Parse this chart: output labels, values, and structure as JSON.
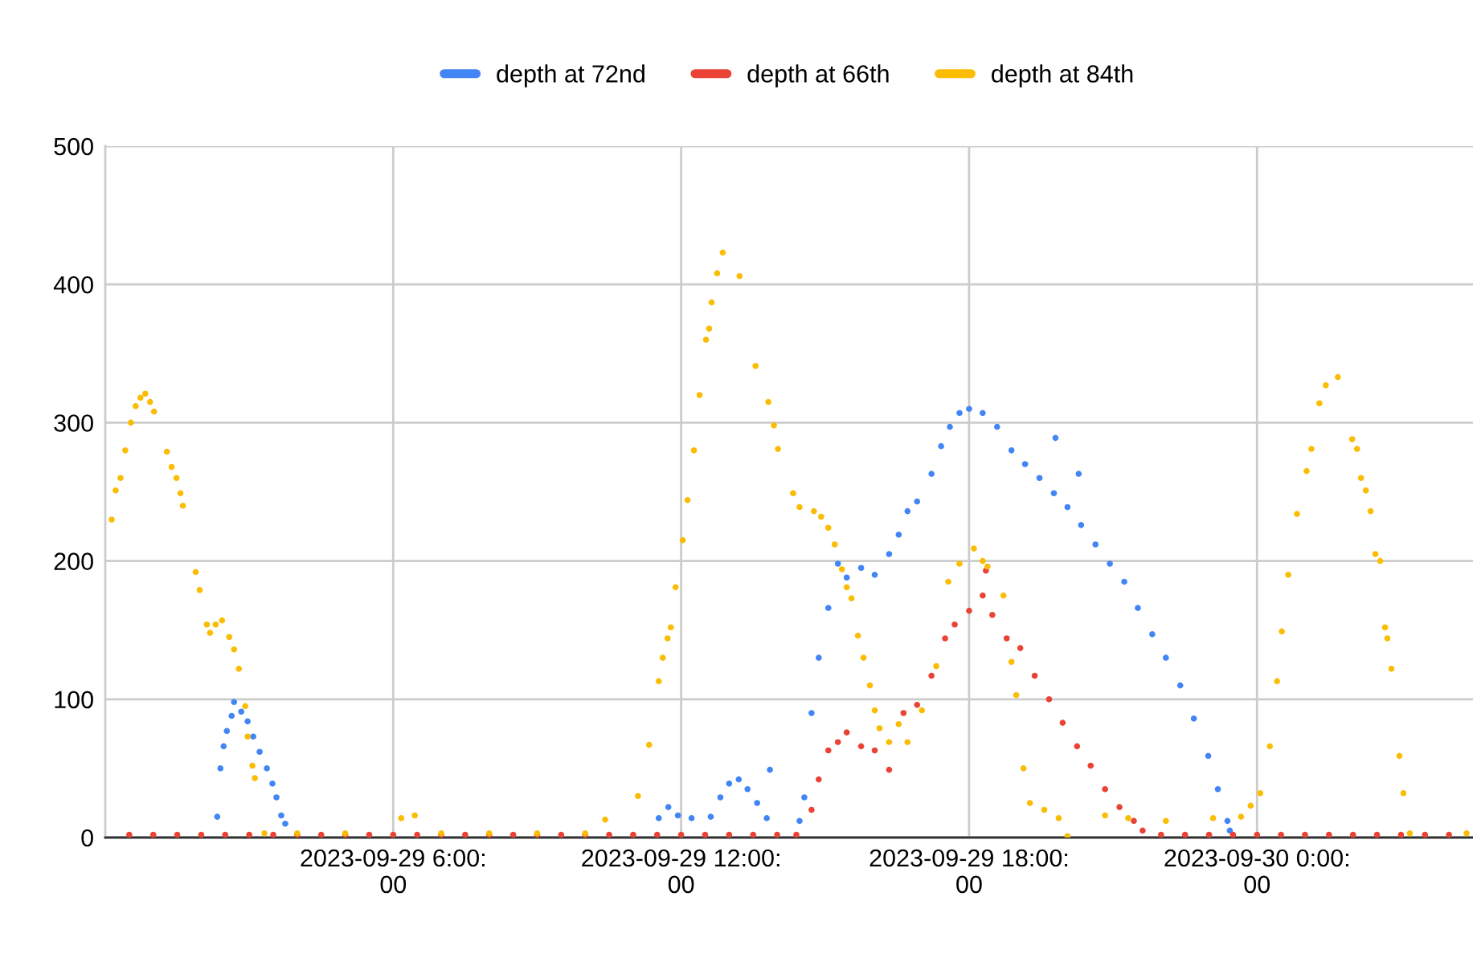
{
  "chart_data": {
    "type": "scatter",
    "marker": "circle",
    "grid": true,
    "legend": "top",
    "xlim": [
      "2023-09-29T00:00",
      "2023-09-30T04:30"
    ],
    "ylim": [
      0,
      500
    ],
    "yticks": [
      0,
      100,
      200,
      300,
      400,
      500
    ],
    "xticks": [
      {
        "value": "2023-09-29T06:00",
        "label": "2023-09-29 6:00:\n00"
      },
      {
        "value": "2023-09-29T12:00",
        "label": "2023-09-29 12:00:\n00"
      },
      {
        "value": "2023-09-29T18:00",
        "label": "2023-09-29 18:00:\n00"
      },
      {
        "value": "2023-09-30T00:00",
        "label": "2023-09-30 0:00:\n00"
      }
    ],
    "series": [
      {
        "name": "depth at 72nd",
        "color": "#4285f4",
        "x": [
          "2023-09-29T02:20",
          "2023-09-29T02:24",
          "2023-09-29T02:28",
          "2023-09-29T02:32",
          "2023-09-29T02:38",
          "2023-09-29T02:41",
          "2023-09-29T02:50",
          "2023-09-29T02:58",
          "2023-09-29T03:05",
          "2023-09-29T03:13",
          "2023-09-29T03:22",
          "2023-09-29T03:29",
          "2023-09-29T03:34",
          "2023-09-29T03:40",
          "2023-09-29T03:45",
          "2023-09-29T11:32",
          "2023-09-29T11:44",
          "2023-09-29T11:56",
          "2023-09-29T12:13",
          "2023-09-29T12:37",
          "2023-09-29T12:49",
          "2023-09-29T13:00",
          "2023-09-29T13:12",
          "2023-09-29T13:23",
          "2023-09-29T13:35",
          "2023-09-29T13:47",
          "2023-09-29T13:51",
          "2023-09-29T14:28",
          "2023-09-29T14:34",
          "2023-09-29T14:43",
          "2023-09-29T14:52",
          "2023-09-29T15:04",
          "2023-09-29T15:16",
          "2023-09-29T15:27",
          "2023-09-29T15:45",
          "2023-09-29T16:02",
          "2023-09-29T16:20",
          "2023-09-29T16:32",
          "2023-09-29T16:43",
          "2023-09-29T16:55",
          "2023-09-29T17:13",
          "2023-09-29T17:25",
          "2023-09-29T17:36",
          "2023-09-29T17:48",
          "2023-09-29T18:00",
          "2023-09-29T18:17",
          "2023-09-29T18:35",
          "2023-09-29T18:53",
          "2023-09-29T19:10",
          "2023-09-29T19:28",
          "2023-09-29T19:46",
          "2023-09-29T19:48",
          "2023-09-29T20:03",
          "2023-09-29T20:17",
          "2023-09-29T20:20",
          "2023-09-29T20:38",
          "2023-09-29T20:56",
          "2023-09-29T21:14",
          "2023-09-29T21:31",
          "2023-09-29T21:49",
          "2023-09-29T22:06",
          "2023-09-29T22:24",
          "2023-09-29T22:41",
          "2023-09-29T22:59",
          "2023-09-29T23:11",
          "2023-09-29T23:23",
          "2023-09-29T23:26"
        ],
        "values": [
          15,
          50,
          66,
          77,
          88,
          98,
          91,
          84,
          73,
          62,
          50,
          39,
          29,
          16,
          10,
          14,
          22,
          16,
          14,
          15,
          29,
          39,
          42,
          35,
          25,
          14,
          49,
          12,
          29,
          90,
          130,
          166,
          198,
          188,
          195,
          190,
          205,
          219,
          236,
          243,
          263,
          283,
          297,
          307,
          310,
          307,
          297,
          280,
          270,
          260,
          249,
          289,
          239,
          263,
          226,
          212,
          198,
          185,
          166,
          147,
          130,
          110,
          86,
          59,
          35,
          12,
          5
        ]
      },
      {
        "name": "depth at 66th",
        "color": "#ea4335",
        "x": [
          "2023-09-29T00:30",
          "2023-09-29T01:00",
          "2023-09-29T01:30",
          "2023-09-29T02:00",
          "2023-09-29T02:30",
          "2023-09-29T03:00",
          "2023-09-29T03:30",
          "2023-09-29T04:00",
          "2023-09-29T04:30",
          "2023-09-29T05:00",
          "2023-09-29T05:30",
          "2023-09-29T06:00",
          "2023-09-29T06:30",
          "2023-09-29T07:00",
          "2023-09-29T07:30",
          "2023-09-29T08:00",
          "2023-09-29T08:30",
          "2023-09-29T09:00",
          "2023-09-29T09:30",
          "2023-09-29T10:00",
          "2023-09-29T10:30",
          "2023-09-29T11:00",
          "2023-09-29T11:30",
          "2023-09-29T12:00",
          "2023-09-29T12:30",
          "2023-09-29T13:00",
          "2023-09-29T13:30",
          "2023-09-29T14:00",
          "2023-09-29T14:24",
          "2023-09-29T14:43",
          "2023-09-29T14:52",
          "2023-09-29T15:04",
          "2023-09-29T15:16",
          "2023-09-29T15:27",
          "2023-09-29T15:45",
          "2023-09-29T16:02",
          "2023-09-29T16:20",
          "2023-09-29T16:38",
          "2023-09-29T16:55",
          "2023-09-29T17:13",
          "2023-09-29T17:30",
          "2023-09-29T17:42",
          "2023-09-29T18:00",
          "2023-09-29T18:17",
          "2023-09-29T18:21",
          "2023-09-29T18:29",
          "2023-09-29T18:47",
          "2023-09-29T19:04",
          "2023-09-29T19:22",
          "2023-09-29T19:40",
          "2023-09-29T19:57",
          "2023-09-29T20:15",
          "2023-09-29T20:32",
          "2023-09-29T20:50",
          "2023-09-29T21:08",
          "2023-09-29T21:26",
          "2023-09-29T21:37",
          "2023-09-29T22:00",
          "2023-09-29T22:30",
          "2023-09-29T23:00",
          "2023-09-29T23:30",
          "2023-09-30T00:00",
          "2023-09-30T00:30",
          "2023-09-30T01:00",
          "2023-09-30T01:30",
          "2023-09-30T02:00",
          "2023-09-30T02:30",
          "2023-09-30T03:00",
          "2023-09-30T03:30",
          "2023-09-30T04:00"
        ],
        "values": [
          2,
          2,
          2,
          2,
          2,
          2,
          2,
          2,
          2,
          2,
          2,
          2,
          2,
          2,
          2,
          2,
          2,
          2,
          2,
          2,
          2,
          2,
          2,
          2,
          2,
          2,
          2,
          2,
          2,
          20,
          42,
          63,
          69,
          76,
          66,
          63,
          49,
          90,
          96,
          117,
          144,
          154,
          164,
          175,
          193,
          161,
          144,
          137,
          117,
          100,
          83,
          66,
          52,
          35,
          22,
          12,
          5,
          2,
          2,
          2,
          2,
          2,
          2,
          2,
          2,
          2,
          2,
          2,
          2,
          2
        ]
      },
      {
        "name": "depth at 84th",
        "color": "#fbbc04",
        "x": [
          "2023-09-29T00:08",
          "2023-09-29T00:13",
          "2023-09-29T00:19",
          "2023-09-29T00:25",
          "2023-09-29T00:32",
          "2023-09-29T00:38",
          "2023-09-29T00:44",
          "2023-09-29T00:50",
          "2023-09-29T00:56",
          "2023-09-29T01:01",
          "2023-09-29T01:17",
          "2023-09-29T01:23",
          "2023-09-29T01:29",
          "2023-09-29T01:34",
          "2023-09-29T01:37",
          "2023-09-29T01:53",
          "2023-09-29T01:58",
          "2023-09-29T02:07",
          "2023-09-29T02:11",
          "2023-09-29T02:18",
          "2023-09-29T02:26",
          "2023-09-29T02:35",
          "2023-09-29T02:41",
          "2023-09-29T02:47",
          "2023-09-29T02:55",
          "2023-09-29T02:58",
          "2023-09-29T03:04",
          "2023-09-29T03:07",
          "2023-09-29T03:19",
          "2023-09-29T04:00",
          "2023-09-29T05:00",
          "2023-09-29T06:10",
          "2023-09-29T06:27",
          "2023-09-29T07:00",
          "2023-09-29T08:00",
          "2023-09-29T09:00",
          "2023-09-29T10:00",
          "2023-09-29T10:25",
          "2023-09-29T11:06",
          "2023-09-29T11:20",
          "2023-09-29T11:32",
          "2023-09-29T11:37",
          "2023-09-29T11:43",
          "2023-09-29T11:47",
          "2023-09-29T11:53",
          "2023-09-29T12:02",
          "2023-09-29T12:08",
          "2023-09-29T12:16",
          "2023-09-29T12:23",
          "2023-09-29T12:31",
          "2023-09-29T12:35",
          "2023-09-29T12:38",
          "2023-09-29T12:45",
          "2023-09-29T12:52",
          "2023-09-29T13:13",
          "2023-09-29T13:33",
          "2023-09-29T13:49",
          "2023-09-29T13:56",
          "2023-09-29T14:01",
          "2023-09-29T14:20",
          "2023-09-29T14:28",
          "2023-09-29T14:46",
          "2023-09-29T14:55",
          "2023-09-29T15:04",
          "2023-09-29T15:12",
          "2023-09-29T15:21",
          "2023-09-29T15:27",
          "2023-09-29T15:33",
          "2023-09-29T15:41",
          "2023-09-29T15:48",
          "2023-09-29T15:56",
          "2023-09-29T16:02",
          "2023-09-29T16:08",
          "2023-09-29T16:20",
          "2023-09-29T16:32",
          "2023-09-29T16:43",
          "2023-09-29T17:01",
          "2023-09-29T17:19",
          "2023-09-29T17:34",
          "2023-09-29T17:48",
          "2023-09-29T18:06",
          "2023-09-29T18:17",
          "2023-09-29T18:23",
          "2023-09-29T18:43",
          "2023-09-29T18:53",
          "2023-09-29T18:59",
          "2023-09-29T19:08",
          "2023-09-29T19:16",
          "2023-09-29T19:34",
          "2023-09-29T19:52",
          "2023-09-29T20:03",
          "2023-09-29T20:50",
          "2023-09-29T21:19",
          "2023-09-29T22:06",
          "2023-09-29T23:05",
          "2023-09-29T23:40",
          "2023-09-29T23:52",
          "2023-09-30T00:04",
          "2023-09-30T00:16",
          "2023-09-30T00:25",
          "2023-09-30T00:31",
          "2023-09-30T00:39",
          "2023-09-30T00:50",
          "2023-09-30T01:02",
          "2023-09-30T01:08",
          "2023-09-30T01:18",
          "2023-09-30T01:26",
          "2023-09-30T01:41",
          "2023-09-30T01:59",
          "2023-09-30T02:05",
          "2023-09-30T02:10",
          "2023-09-30T02:16",
          "2023-09-30T02:22",
          "2023-09-30T02:28",
          "2023-09-30T02:34",
          "2023-09-30T02:40",
          "2023-09-30T02:43",
          "2023-09-30T02:48",
          "2023-09-30T02:58",
          "2023-09-30T03:03",
          "2023-09-30T03:11",
          "2023-09-30T04:22"
        ],
        "values": [
          230,
          251,
          260,
          280,
          300,
          312,
          318,
          321,
          315,
          308,
          279,
          268,
          260,
          249,
          240,
          192,
          179,
          154,
          148,
          154,
          157,
          145,
          136,
          122,
          95,
          73,
          52,
          43,
          3,
          3,
          3,
          14,
          16,
          3,
          3,
          3,
          3,
          13,
          30,
          67,
          113,
          130,
          144,
          152,
          181,
          215,
          244,
          280,
          320,
          360,
          368,
          387,
          408,
          423,
          406,
          341,
          315,
          298,
          281,
          249,
          239,
          236,
          232,
          224,
          212,
          194,
          181,
          173,
          146,
          130,
          110,
          92,
          79,
          69,
          82,
          69,
          92,
          124,
          185,
          198,
          209,
          200,
          196,
          175,
          127,
          103,
          50,
          25,
          20,
          14,
          1,
          16,
          14,
          12,
          14,
          15,
          23,
          32,
          66,
          113,
          149,
          190,
          234,
          265,
          281,
          314,
          327,
          333,
          288,
          281,
          260,
          251,
          236,
          205,
          200,
          152,
          144,
          122,
          59,
          32,
          3,
          3
        ]
      }
    ]
  }
}
